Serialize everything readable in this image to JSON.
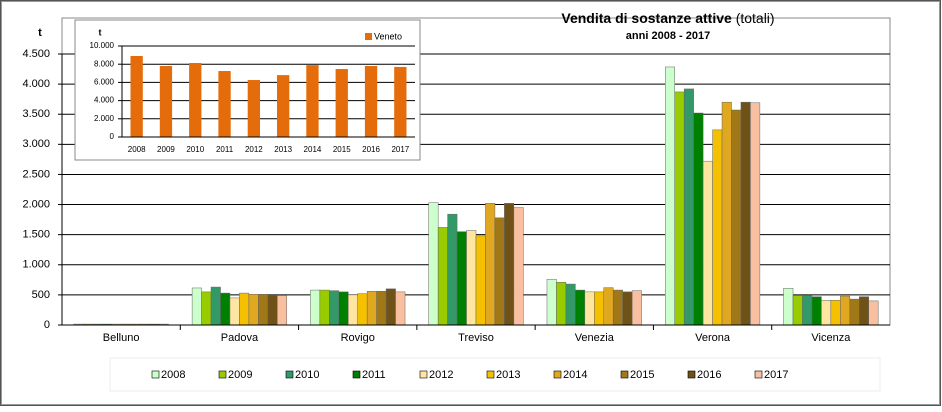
{
  "chart_data": [
    {
      "type": "bar",
      "title": "Vendita di sostanze attive",
      "title_suffix": "(totali)",
      "subtitle": "anni 2008 - 2017",
      "y_label": "t",
      "categories": [
        "Belluno",
        "Padova",
        "Rovigo",
        "Treviso",
        "Venezia",
        "Verona",
        "Vicenza"
      ],
      "series": [
        {
          "name": "2008",
          "color": "#ccffcc",
          "values": [
            15,
            615,
            580,
            2030,
            760,
            4285,
            610
          ]
        },
        {
          "name": "2009",
          "color": "#99cc00",
          "values": [
            15,
            550,
            580,
            1620,
            710,
            3870,
            490
          ]
        },
        {
          "name": "2010",
          "color": "#339966",
          "values": [
            15,
            630,
            570,
            1840,
            680,
            3920,
            490
          ]
        },
        {
          "name": "2011",
          "color": "#008000",
          "values": [
            15,
            530,
            550,
            1550,
            580,
            3520,
            470
          ]
        },
        {
          "name": "2012",
          "color": "#ffe6a0",
          "values": [
            15,
            450,
            500,
            1570,
            550,
            2720,
            410
          ]
        },
        {
          "name": "2013",
          "color": "#f5c000",
          "values": [
            15,
            530,
            520,
            1480,
            550,
            3240,
            410
          ]
        },
        {
          "name": "2014",
          "color": "#e0a820",
          "values": [
            15,
            510,
            560,
            2020,
            620,
            3700,
            480
          ]
        },
        {
          "name": "2015",
          "color": "#a07818",
          "values": [
            15,
            510,
            560,
            1780,
            580,
            3570,
            430
          ]
        },
        {
          "name": "2016",
          "color": "#6e5218",
          "values": [
            15,
            490,
            600,
            2020,
            550,
            3700,
            470
          ]
        },
        {
          "name": "2017",
          "color": "#f8c0a0",
          "values": [
            15,
            490,
            550,
            1950,
            570,
            3690,
            400
          ]
        }
      ],
      "ylim": [
        0,
        4500
      ],
      "yticks": [
        0,
        500,
        {
          "value": 1000,
          "label": "1.000"
        },
        {
          "value": 1500,
          "label": "1.500"
        },
        {
          "value": 2000,
          "label": "2.000"
        },
        {
          "value": 2500,
          "label": "2.500"
        },
        {
          "value": 3000,
          "label": "3.000"
        },
        {
          "value": 3500,
          "label": "3.500"
        },
        {
          "value": 4000,
          "label": "4.000"
        },
        {
          "value": 4500,
          "label": "4.500"
        }
      ],
      "grid": true,
      "legend": "bottom"
    },
    {
      "type": "bar",
      "y_label": "t",
      "categories": [
        "2008",
        "2009",
        "2010",
        "2011",
        "2012",
        "2013",
        "2014",
        "2015",
        "2016",
        "2017"
      ],
      "series": [
        {
          "name": "Veneto",
          "color": "#e46c0a",
          "values": [
            8900,
            7800,
            8130,
            7250,
            6260,
            6800,
            7900,
            7470,
            7800,
            7700
          ]
        }
      ],
      "ylim": [
        0,
        10000
      ],
      "yticks": [
        0,
        {
          "value": 2000,
          "label": "2.000"
        },
        {
          "value": 4000,
          "label": "4.000"
        },
        {
          "value": 6000,
          "label": "6.000"
        },
        {
          "value": 8000,
          "label": "8.000"
        },
        {
          "value": 10000,
          "label": "10.000"
        }
      ],
      "grid": true,
      "legend": "top-right"
    }
  ]
}
